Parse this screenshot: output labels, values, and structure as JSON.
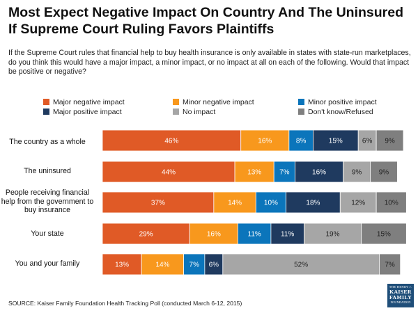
{
  "title": "Most Expect Negative Impact On Country And The Uninsured If Supreme Court Ruling Favors Plaintiffs",
  "question": "If the Supreme Court rules that financial help to buy health insurance is only available in states with state-run marketplaces, do you think this would have a major impact, a minor impact, or no impact at all on each of the following. Would that impact be positive or negative?",
  "source": "SOURCE: Kaiser Family Foundation Health Tracking Poll (conducted March 6-12, 2015)",
  "logo": {
    "line1": "THE HENRY J.",
    "line2": "KAISER",
    "line3": "FAMILY",
    "line4": "FOUNDATION"
  },
  "chart_data": {
    "type": "bar",
    "orientation": "horizontal",
    "stacked": true,
    "categories": [
      "The country as a whole",
      "The uninsured",
      "People receiving financial help from the government to buy insurance",
      "Your state",
      "You and your family"
    ],
    "series": [
      {
        "name": "Major negative impact",
        "color": "#e05a26",
        "values": [
          46,
          44,
          37,
          29,
          13
        ]
      },
      {
        "name": "Minor negative impact",
        "color": "#f8981d",
        "values": [
          16,
          13,
          14,
          16,
          14
        ]
      },
      {
        "name": "Minor positive impact",
        "color": "#0b75bb",
        "values": [
          8,
          7,
          10,
          11,
          7
        ]
      },
      {
        "name": "Major positive impact",
        "color": "#1f3a5f",
        "values": [
          15,
          16,
          18,
          11,
          6
        ]
      },
      {
        "name": "No impact",
        "color": "#a6a6a6",
        "values": [
          6,
          9,
          12,
          19,
          52
        ]
      },
      {
        "name": "Don't know/Refused",
        "color": "#7f7f7f",
        "values": [
          9,
          9,
          10,
          15,
          7
        ]
      }
    ],
    "value_suffix": "%",
    "xlim": [
      0,
      100
    ]
  }
}
